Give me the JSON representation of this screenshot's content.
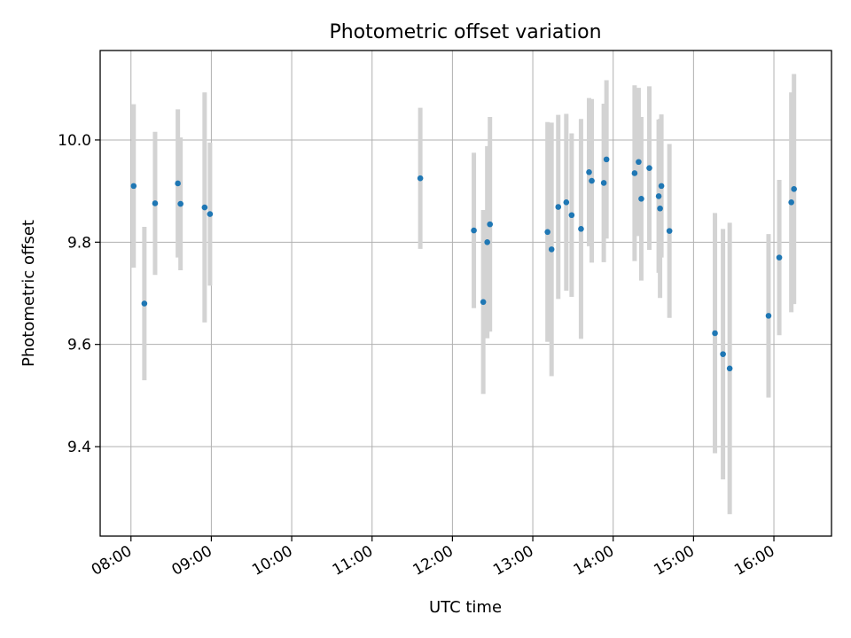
{
  "chart_data": {
    "type": "scatter",
    "title": "Photometric offset variation",
    "xlabel": "UTC time",
    "ylabel": "Photometric offset",
    "xlim": [
      "07:37",
      "16:43"
    ],
    "ylim": [
      9.225,
      10.175
    ],
    "x_ticks": [
      "08:00",
      "09:00",
      "10:00",
      "11:00",
      "12:00",
      "13:00",
      "14:00",
      "15:00",
      "16:00"
    ],
    "y_ticks": [
      "9.4",
      "9.6",
      "9.8",
      "10.0"
    ],
    "grid": true,
    "colors": {
      "point": "#1f77b4",
      "errorbar": "#d3d3d3",
      "grid": "#b0b0b0"
    },
    "points": [
      {
        "x": "08:02",
        "y": 9.91,
        "err": 0.16
      },
      {
        "x": "08:10",
        "y": 9.68,
        "err": 0.15
      },
      {
        "x": "08:18",
        "y": 9.876,
        "err": 0.14
      },
      {
        "x": "08:35",
        "y": 9.915,
        "err": 0.145
      },
      {
        "x": "08:37",
        "y": 9.875,
        "err": 0.13
      },
      {
        "x": "08:55",
        "y": 9.868,
        "err": 0.225
      },
      {
        "x": "08:59",
        "y": 9.855,
        "err": 0.14
      },
      {
        "x": "11:36",
        "y": 9.925,
        "err": 0.138
      },
      {
        "x": "12:16",
        "y": 9.823,
        "err": 0.152
      },
      {
        "x": "12:23",
        "y": 9.683,
        "err": 0.18
      },
      {
        "x": "12:26",
        "y": 9.8,
        "err": 0.188
      },
      {
        "x": "12:28",
        "y": 9.835,
        "err": 0.21
      },
      {
        "x": "13:11",
        "y": 9.82,
        "err": 0.215
      },
      {
        "x": "13:14",
        "y": 9.786,
        "err": 0.248
      },
      {
        "x": "13:19",
        "y": 9.869,
        "err": 0.18
      },
      {
        "x": "13:25",
        "y": 9.878,
        "err": 0.173
      },
      {
        "x": "13:29",
        "y": 9.853,
        "err": 0.16
      },
      {
        "x": "13:36",
        "y": 9.826,
        "err": 0.215
      },
      {
        "x": "13:42",
        "y": 9.937,
        "err": 0.145
      },
      {
        "x": "13:44",
        "y": 9.92,
        "err": 0.16
      },
      {
        "x": "13:53",
        "y": 9.916,
        "err": 0.155
      },
      {
        "x": "13:55",
        "y": 9.962,
        "err": 0.155
      },
      {
        "x": "14:16",
        "y": 9.935,
        "err": 0.172
      },
      {
        "x": "14:19",
        "y": 9.957,
        "err": 0.145
      },
      {
        "x": "14:21",
        "y": 9.885,
        "err": 0.16
      },
      {
        "x": "14:27",
        "y": 9.945,
        "err": 0.16
      },
      {
        "x": "14:34",
        "y": 9.89,
        "err": 0.15
      },
      {
        "x": "14:35",
        "y": 9.866,
        "err": 0.175
      },
      {
        "x": "14:36",
        "y": 9.91,
        "err": 0.14
      },
      {
        "x": "14:42",
        "y": 9.822,
        "err": 0.17
      },
      {
        "x": "15:16",
        "y": 9.622,
        "err": 0.235
      },
      {
        "x": "15:22",
        "y": 9.581,
        "err": 0.245
      },
      {
        "x": "15:27",
        "y": 9.553,
        "err": 0.285
      },
      {
        "x": "15:56",
        "y": 9.656,
        "err": 0.16
      },
      {
        "x": "16:04",
        "y": 9.77,
        "err": 0.152
      },
      {
        "x": "16:13",
        "y": 9.878,
        "err": 0.215
      },
      {
        "x": "16:15",
        "y": 9.904,
        "err": 0.225
      }
    ]
  }
}
